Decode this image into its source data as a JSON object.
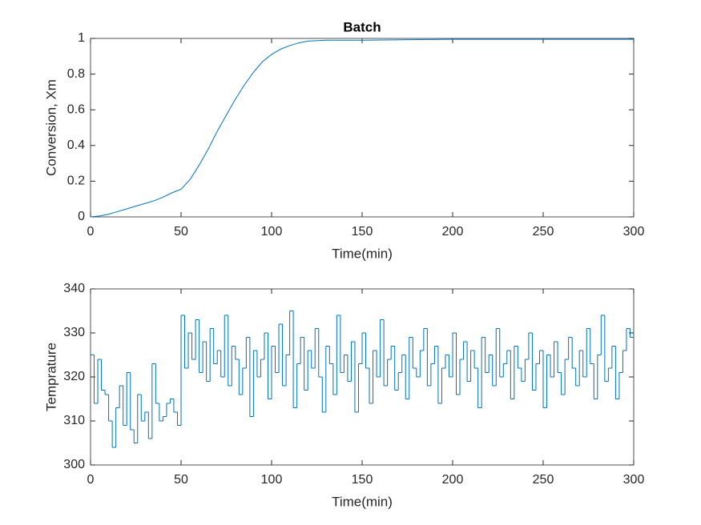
{
  "chart_data": [
    {
      "type": "line",
      "title": "Batch",
      "xlabel": "Time(min)",
      "ylabel": "Conversion, Xm",
      "color": "#0072bd",
      "x": [
        0,
        5,
        10,
        15,
        20,
        25,
        30,
        35,
        40,
        45,
        50,
        55,
        60,
        65,
        70,
        75,
        80,
        85,
        90,
        95,
        100,
        105,
        110,
        115,
        120,
        130,
        150,
        200,
        300
      ],
      "values": [
        0,
        0.005,
        0.015,
        0.03,
        0.045,
        0.06,
        0.075,
        0.09,
        0.11,
        0.135,
        0.155,
        0.21,
        0.29,
        0.38,
        0.48,
        0.57,
        0.66,
        0.74,
        0.81,
        0.87,
        0.91,
        0.94,
        0.96,
        0.975,
        0.985,
        0.99,
        0.99,
        0.995,
        0.995
      ],
      "xlim": [
        0,
        300
      ],
      "xticks": [
        0,
        50,
        100,
        150,
        200,
        250,
        300
      ],
      "ylim": [
        0,
        1
      ],
      "yticks": [
        0,
        0.2,
        0.4,
        0.6,
        0.8,
        1
      ]
    },
    {
      "type": "stairs",
      "xlabel": "Time(min)",
      "ylabel": "Temprature",
      "color": "#0072bd",
      "x": [
        0,
        2,
        4,
        6,
        8,
        10,
        12,
        14,
        16,
        18,
        20,
        22,
        24,
        26,
        28,
        30,
        32,
        34,
        36,
        38,
        40,
        42,
        44,
        46,
        48,
        50,
        52,
        54,
        56,
        58,
        60,
        62,
        64,
        66,
        68,
        70,
        72,
        74,
        76,
        78,
        80,
        82,
        84,
        86,
        88,
        90,
        92,
        94,
        96,
        98,
        100,
        102,
        104,
        106,
        108,
        110,
        112,
        114,
        116,
        118,
        120,
        122,
        124,
        126,
        128,
        130,
        132,
        134,
        136,
        138,
        140,
        142,
        144,
        146,
        148,
        150,
        152,
        154,
        156,
        158,
        160,
        162,
        164,
        166,
        168,
        170,
        172,
        174,
        176,
        178,
        180,
        182,
        184,
        186,
        188,
        190,
        192,
        194,
        196,
        198,
        200,
        202,
        204,
        206,
        208,
        210,
        212,
        214,
        216,
        218,
        220,
        222,
        224,
        226,
        228,
        230,
        232,
        234,
        236,
        238,
        240,
        242,
        244,
        246,
        248,
        250,
        252,
        254,
        256,
        258,
        260,
        262,
        264,
        266,
        268,
        270,
        272,
        274,
        276,
        278,
        280,
        282,
        284,
        286,
        288,
        290,
        292,
        294,
        296,
        298
      ],
      "values": [
        325,
        314,
        324,
        317,
        316,
        310,
        304,
        313,
        318,
        309,
        321,
        308,
        305,
        316,
        310,
        312,
        306,
        323,
        314,
        310,
        311,
        314,
        315,
        312,
        309,
        334,
        322,
        330,
        324,
        333,
        321,
        328,
        319,
        331,
        323,
        326,
        320,
        334,
        318,
        327,
        324,
        316,
        322,
        329,
        311,
        326,
        320,
        324,
        330,
        315,
        327,
        321,
        332,
        318,
        325,
        335,
        313,
        323,
        329,
        317,
        326,
        322,
        331,
        320,
        312,
        327,
        323,
        316,
        334,
        321,
        325,
        319,
        328,
        312,
        323,
        330,
        322,
        314,
        326,
        320,
        333,
        318,
        324,
        327,
        317,
        321,
        325,
        315,
        329,
        322,
        320,
        326,
        331,
        318,
        323,
        327,
        314,
        322,
        325,
        320,
        330,
        316,
        324,
        328,
        319,
        326,
        322,
        313,
        329,
        321,
        325,
        318,
        331,
        320,
        323,
        326,
        315,
        327,
        322,
        319,
        324,
        330,
        317,
        323,
        326,
        313,
        325,
        320,
        328,
        321,
        316,
        324,
        329,
        322,
        318,
        326,
        320,
        331,
        323,
        315,
        325,
        334,
        319,
        322,
        327,
        315,
        321,
        326,
        331,
        329
      ],
      "xlim": [
        0,
        300
      ],
      "xticks": [
        0,
        50,
        100,
        150,
        200,
        250,
        300
      ],
      "ylim": [
        300,
        340
      ],
      "yticks": [
        300,
        310,
        320,
        330,
        340
      ]
    }
  ]
}
